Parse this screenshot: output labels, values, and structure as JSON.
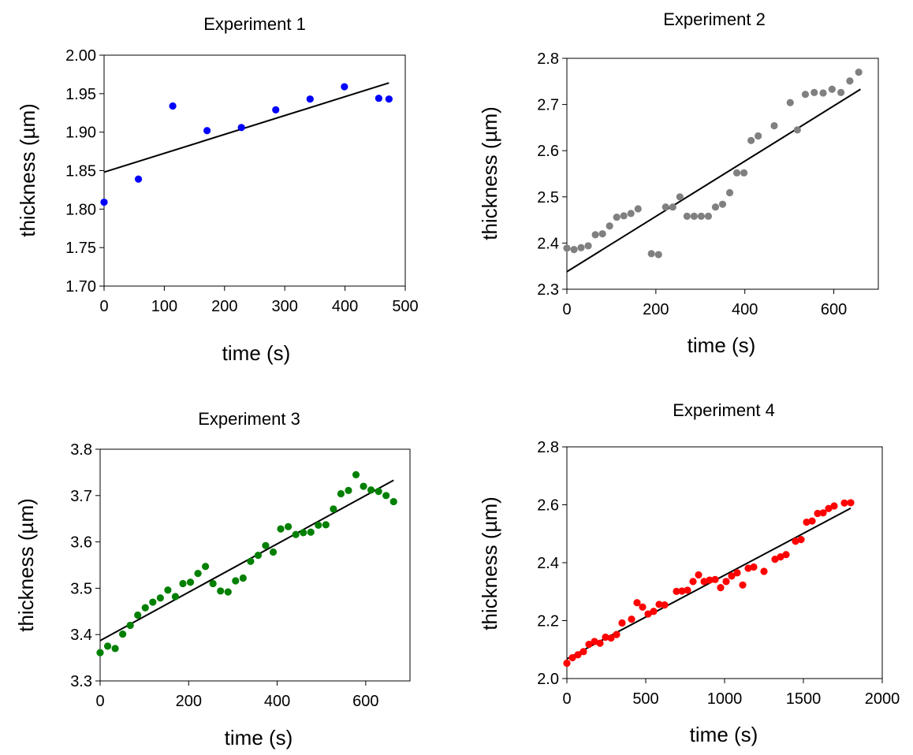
{
  "chart_data": [
    {
      "type": "scatter",
      "title": "Experiment 1",
      "xlabel": "time (s)",
      "ylabel": "thickness (µm)",
      "xlim": [
        0,
        500
      ],
      "ylim": [
        1.7,
        2.0
      ],
      "xticks": [
        "0",
        "100",
        "200",
        "300",
        "400",
        "500"
      ],
      "yticks": [
        "1.70",
        "1.75",
        "1.80",
        "1.85",
        "1.90",
        "1.95",
        "2.00"
      ],
      "series": [
        {
          "color": "#0000ff",
          "points": [
            [
              0,
              1.809
            ],
            [
              57,
              1.839
            ],
            [
              114,
              1.934
            ],
            [
              171,
              1.902
            ],
            [
              228,
              1.906
            ],
            [
              285,
              1.929
            ],
            [
              342,
              1.943
            ],
            [
              399,
              1.959
            ],
            [
              456,
              1.944
            ],
            [
              473,
              1.943
            ]
          ]
        }
      ],
      "fit": {
        "color": "#000000",
        "x": [
          0,
          473
        ],
        "y": [
          1.848,
          1.964
        ]
      }
    },
    {
      "type": "scatter",
      "title": "Experiment 2",
      "xlabel": "time (s)",
      "ylabel": "thickness (µm)",
      "xlim": [
        0,
        700
      ],
      "ylim": [
        2.3,
        2.8
      ],
      "xticks": [
        "0",
        "200",
        "400",
        "600"
      ],
      "yticks": [
        "2.3",
        "2.4",
        "2.5",
        "2.6",
        "2.7",
        "2.8"
      ],
      "series": [
        {
          "color": "#808080",
          "points": [
            [
              0,
              2.389
            ],
            [
              16,
              2.386
            ],
            [
              32,
              2.39
            ],
            [
              48,
              2.394
            ],
            [
              64,
              2.418
            ],
            [
              80,
              2.42
            ],
            [
              96,
              2.437
            ],
            [
              112,
              2.456
            ],
            [
              128,
              2.459
            ],
            [
              144,
              2.464
            ],
            [
              160,
              2.474
            ],
            [
              190,
              2.377
            ],
            [
              206,
              2.375
            ],
            [
              222,
              2.478
            ],
            [
              238,
              2.478
            ],
            [
              254,
              2.5
            ],
            [
              270,
              2.458
            ],
            [
              286,
              2.458
            ],
            [
              302,
              2.458
            ],
            [
              318,
              2.458
            ],
            [
              334,
              2.478
            ],
            [
              350,
              2.484
            ],
            [
              366,
              2.509
            ],
            [
              382,
              2.552
            ],
            [
              398,
              2.552
            ],
            [
              414,
              2.622
            ],
            [
              430,
              2.632
            ],
            [
              466,
              2.654
            ],
            [
              502,
              2.704
            ],
            [
              518,
              2.645
            ],
            [
              536,
              2.722
            ],
            [
              556,
              2.726
            ],
            [
              576,
              2.725
            ],
            [
              596,
              2.733
            ],
            [
              616,
              2.726
            ],
            [
              636,
              2.751
            ],
            [
              656,
              2.77
            ]
          ]
        }
      ],
      "fit": {
        "color": "#000000",
        "x": [
          0,
          660
        ],
        "y": [
          2.338,
          2.733
        ]
      }
    },
    {
      "type": "scatter",
      "title": "Experiment 3",
      "xlabel": "time (s)",
      "ylabel": "thickness (µm)",
      "xlim": [
        0,
        700
      ],
      "ylim": [
        3.3,
        3.8
      ],
      "xticks": [
        "0",
        "200",
        "400",
        "600"
      ],
      "yticks": [
        "3.3",
        "3.4",
        "3.5",
        "3.6",
        "3.7",
        "3.8"
      ],
      "series": [
        {
          "color": "#008000",
          "points": [
            [
              0,
              3.361
            ],
            [
              17,
              3.375
            ],
            [
              34,
              3.37
            ],
            [
              51,
              3.401
            ],
            [
              68,
              3.42
            ],
            [
              85,
              3.442
            ],
            [
              102,
              3.458
            ],
            [
              119,
              3.47
            ],
            [
              136,
              3.479
            ],
            [
              153,
              3.496
            ],
            [
              170,
              3.482
            ],
            [
              187,
              3.51
            ],
            [
              204,
              3.513
            ],
            [
              221,
              3.532
            ],
            [
              238,
              3.547
            ],
            [
              255,
              3.51
            ],
            [
              272,
              3.494
            ],
            [
              289,
              3.492
            ],
            [
              306,
              3.516
            ],
            [
              323,
              3.522
            ],
            [
              340,
              3.558
            ],
            [
              357,
              3.571
            ],
            [
              374,
              3.592
            ],
            [
              391,
              3.578
            ],
            [
              408,
              3.628
            ],
            [
              425,
              3.633
            ],
            [
              442,
              3.616
            ],
            [
              459,
              3.62
            ],
            [
              476,
              3.621
            ],
            [
              493,
              3.636
            ],
            [
              510,
              3.637
            ],
            [
              527,
              3.671
            ],
            [
              544,
              3.704
            ],
            [
              561,
              3.711
            ],
            [
              578,
              3.745
            ],
            [
              595,
              3.72
            ],
            [
              612,
              3.712
            ],
            [
              629,
              3.709
            ],
            [
              646,
              3.7
            ],
            [
              663,
              3.687
            ]
          ]
        }
      ],
      "fit": {
        "color": "#000000",
        "x": [
          0,
          663
        ],
        "y": [
          3.387,
          3.733
        ]
      }
    },
    {
      "type": "scatter",
      "title": "Experiment 4",
      "xlabel": "time (s)",
      "ylabel": "thickness (µm)",
      "xlim": [
        0,
        2000
      ],
      "ylim": [
        2.0,
        2.8
      ],
      "xticks": [
        "0",
        "500",
        "1000",
        "1500",
        "2000"
      ],
      "yticks": [
        "2.0",
        "2.2",
        "2.4",
        "2.6",
        "2.8"
      ],
      "series": [
        {
          "color": "#ff0000",
          "points": [
            [
              0,
              2.053
            ],
            [
              35,
              2.072
            ],
            [
              70,
              2.082
            ],
            [
              105,
              2.093
            ],
            [
              140,
              2.118
            ],
            [
              175,
              2.128
            ],
            [
              210,
              2.122
            ],
            [
              245,
              2.143
            ],
            [
              280,
              2.14
            ],
            [
              315,
              2.152
            ],
            [
              350,
              2.192
            ],
            [
              410,
              2.205
            ],
            [
              445,
              2.262
            ],
            [
              480,
              2.247
            ],
            [
              515,
              2.223
            ],
            [
              550,
              2.232
            ],
            [
              585,
              2.256
            ],
            [
              620,
              2.254
            ],
            [
              695,
              2.301
            ],
            [
              730,
              2.302
            ],
            [
              765,
              2.305
            ],
            [
              800,
              2.335
            ],
            [
              835,
              2.358
            ],
            [
              870,
              2.335
            ],
            [
              905,
              2.34
            ],
            [
              940,
              2.342
            ],
            [
              975,
              2.314
            ],
            [
              1010,
              2.335
            ],
            [
              1045,
              2.354
            ],
            [
              1080,
              2.365
            ],
            [
              1115,
              2.323
            ],
            [
              1150,
              2.381
            ],
            [
              1185,
              2.385
            ],
            [
              1250,
              2.37
            ],
            [
              1320,
              2.412
            ],
            [
              1355,
              2.42
            ],
            [
              1390,
              2.428
            ],
            [
              1450,
              2.474
            ],
            [
              1485,
              2.48
            ],
            [
              1520,
              2.54
            ],
            [
              1555,
              2.544
            ],
            [
              1590,
              2.57
            ],
            [
              1625,
              2.572
            ],
            [
              1660,
              2.587
            ],
            [
              1695,
              2.596
            ],
            [
              1760,
              2.606
            ],
            [
              1800,
              2.607
            ]
          ]
        }
      ],
      "fit": {
        "color": "#000000",
        "x": [
          0,
          1800
        ],
        "y": [
          2.068,
          2.588
        ]
      }
    }
  ]
}
